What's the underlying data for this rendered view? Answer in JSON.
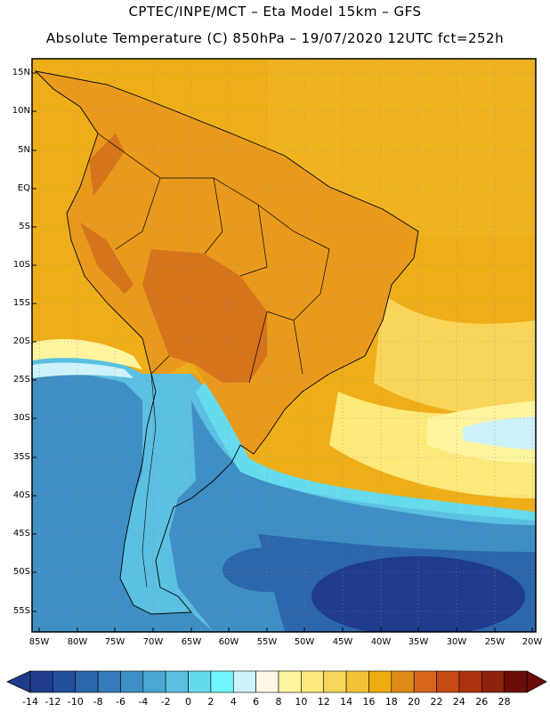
{
  "title_line1": "CPTEC/INPE/MCT –  Eta Model 15km – GFS",
  "title_line2": "Absolute Temperature (C) 850hPa – 19/07/2020 12UTC fct=252h",
  "lat_labels": [
    "15N",
    "10N",
    "5N",
    "EQ",
    "5S",
    "10S",
    "15S",
    "20S",
    "25S",
    "30S",
    "35S",
    "40S",
    "45S",
    "50S",
    "55S"
  ],
  "lon_labels": [
    "85W",
    "80W",
    "75W",
    "70W",
    "65W",
    "60W",
    "55W",
    "50W",
    "45W",
    "40W",
    "35W",
    "30W",
    "25W",
    "20W"
  ],
  "colorbar": {
    "labels": [
      "-14",
      "-12",
      "-10",
      "-8",
      "-6",
      "-4",
      "-2",
      "0",
      "2",
      "4",
      "6",
      "8",
      "10",
      "12",
      "14",
      "16",
      "18",
      "20",
      "22",
      "24",
      "26",
      "28"
    ],
    "colors": [
      "#1f3b8c",
      "#22509c",
      "#2c66ab",
      "#3579b8",
      "#3f8fc5",
      "#4aa6d4",
      "#5bc0e2",
      "#66dbee",
      "#6ff5fb",
      "#cdf2f9",
      "#fff7e6",
      "#fff59e",
      "#fde97a",
      "#f9d65a",
      "#f2c236",
      "#eeac10",
      "#e08a18",
      "#d6661a",
      "#c54a14",
      "#ad3210",
      "#8d220d",
      "#6b0e0a"
    ]
  },
  "map_colors": {
    "ocean_north": "#eeae18",
    "land_north": "#e99a1c",
    "land_hot": "#d6741c",
    "south_cold": "#3f8fc5",
    "south_colder": "#2c66ab",
    "deep_cold": "#1f3b8c",
    "cyan_band": "#5bd7ec",
    "light_band": "#cdf2f9",
    "yellow_band": "#fde97a"
  }
}
